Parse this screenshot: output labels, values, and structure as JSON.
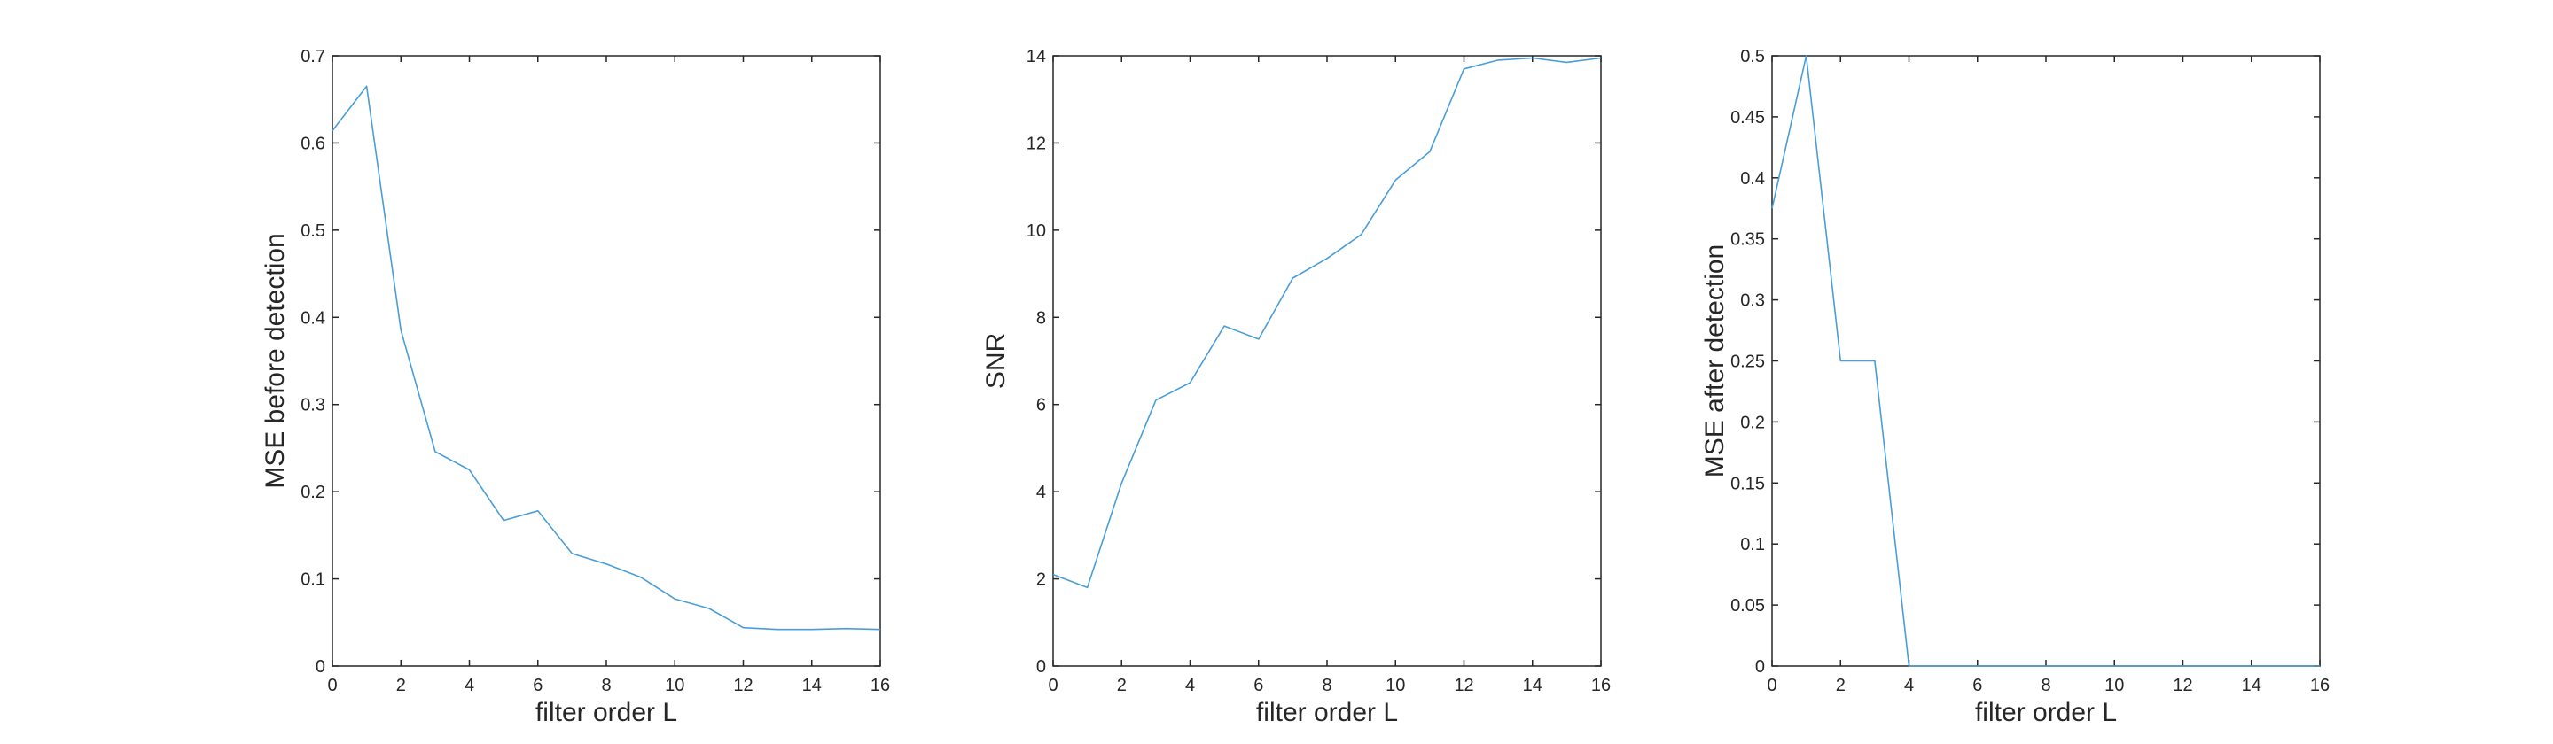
{
  "chart_data": [
    {
      "type": "line",
      "xlabel": "filter order L",
      "ylabel": "MSE before detection",
      "xlim": [
        0,
        16
      ],
      "ylim": [
        0,
        0.7
      ],
      "xticks": [
        0,
        2,
        4,
        6,
        8,
        10,
        12,
        14,
        16
      ],
      "yticks": [
        0,
        0.1,
        0.2,
        0.3,
        0.4,
        0.5,
        0.6,
        0.7
      ],
      "grid": false,
      "color": "#4A9ED8",
      "series": [
        {
          "x": [
            0,
            1,
            2,
            3,
            4,
            5,
            6,
            7,
            8,
            9,
            10,
            11,
            12,
            13,
            14,
            15,
            16
          ],
          "values": [
            0.614,
            0.665,
            0.385,
            0.246,
            0.225,
            0.167,
            0.178,
            0.129,
            0.117,
            0.102,
            0.077,
            0.066,
            0.044,
            0.042,
            0.042,
            0.043,
            0.042
          ]
        }
      ]
    },
    {
      "type": "line",
      "xlabel": "filter order L",
      "ylabel": "SNR",
      "xlim": [
        0,
        16
      ],
      "ylim": [
        0,
        14
      ],
      "xticks": [
        0,
        2,
        4,
        6,
        8,
        10,
        12,
        14,
        16
      ],
      "yticks": [
        0,
        2,
        4,
        6,
        8,
        10,
        12,
        14
      ],
      "grid": false,
      "color": "#4A9ED8",
      "series": [
        {
          "x": [
            0,
            1,
            2,
            3,
            4,
            5,
            6,
            7,
            8,
            9,
            10,
            11,
            12,
            13,
            14,
            15,
            16
          ],
          "values": [
            2.1,
            1.8,
            4.2,
            6.1,
            6.5,
            7.8,
            7.5,
            8.9,
            9.35,
            9.9,
            11.15,
            11.8,
            13.7,
            13.9,
            13.95,
            13.85,
            13.95
          ]
        }
      ]
    },
    {
      "type": "line",
      "xlabel": "filter order L",
      "ylabel": "MSE after detection",
      "xlim": [
        0,
        16
      ],
      "ylim": [
        0,
        0.5
      ],
      "xticks": [
        0,
        2,
        4,
        6,
        8,
        10,
        12,
        14,
        16
      ],
      "yticks": [
        0,
        0.05,
        0.1,
        0.15,
        0.2,
        0.25,
        0.3,
        0.35,
        0.4,
        0.45,
        0.5
      ],
      "grid": false,
      "color": "#4A9ED8",
      "series": [
        {
          "x": [
            0,
            1,
            2,
            3,
            4,
            5,
            6,
            7,
            8,
            9,
            10,
            11,
            12,
            13,
            14,
            15,
            16
          ],
          "values": [
            0.375,
            0.5,
            0.25,
            0.25,
            0,
            0,
            0,
            0,
            0,
            0,
            0,
            0,
            0,
            0,
            0,
            0,
            0
          ]
        }
      ]
    }
  ]
}
